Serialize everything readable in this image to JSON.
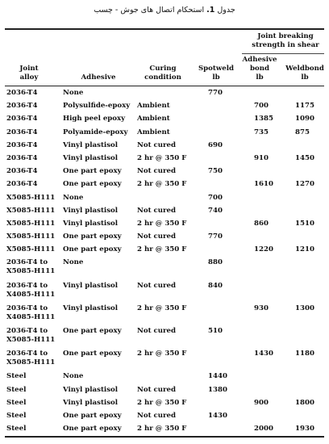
{
  "caption": {
    "text": "استحکام اتصال های جوش - چسب",
    "label": "جدول",
    "number": "1."
  },
  "headers": {
    "group": [
      "Joint breaking",
      "strength in shear"
    ],
    "alloy": [
      "Joint",
      "alloy"
    ],
    "adhesive": [
      "Adhesive"
    ],
    "curing": [
      "Curing",
      "condition"
    ],
    "spotweld": [
      "Spotweld",
      "lb"
    ],
    "adhesive_bond": [
      "Adhesive",
      "bond",
      "lb"
    ],
    "weldbond": [
      "Weldbond",
      "lb"
    ]
  },
  "rows": [
    {
      "alloy": [
        "2036-T4"
      ],
      "adhesive": "None",
      "curing": "",
      "spotweld": "770",
      "adhesive_bond": "",
      "weldbond": ""
    },
    {
      "alloy": [
        "2036-T4"
      ],
      "adhesive": "Polysulfide-epoxy",
      "curing": "Ambient",
      "spotweld": "",
      "adhesive_bond": "700",
      "weldbond": "1175"
    },
    {
      "alloy": [
        "2036-T4"
      ],
      "adhesive": "High peel epoxy",
      "curing": "Ambient",
      "spotweld": "",
      "adhesive_bond": "1385",
      "weldbond": "1090"
    },
    {
      "alloy": [
        "2036-T4"
      ],
      "adhesive": "Polyamide-epoxy",
      "curing": "Ambient",
      "spotweld": "",
      "adhesive_bond": "735",
      "weldbond": "875"
    },
    {
      "alloy": [
        "2036-T4"
      ],
      "adhesive": "Vinyl plastisol",
      "curing": "Not cured",
      "spotweld": "690",
      "adhesive_bond": "",
      "weldbond": ""
    },
    {
      "alloy": [
        "2036-T4"
      ],
      "adhesive": "Vinyl plastisol",
      "curing": "2 hr @ 350 F",
      "spotweld": "",
      "adhesive_bond": "910",
      "weldbond": "1450"
    },
    {
      "alloy": [
        "2036-T4"
      ],
      "adhesive": "One part epoxy",
      "curing": "Not cured",
      "spotweld": "750",
      "adhesive_bond": "",
      "weldbond": ""
    },
    {
      "alloy": [
        "2036-T4"
      ],
      "adhesive": "One part epoxy",
      "curing": "2 hr @ 350 F",
      "spotweld": "",
      "adhesive_bond": "1610",
      "weldbond": "1270"
    },
    {
      "alloy": [
        "X5085-H111"
      ],
      "adhesive": "None",
      "curing": "",
      "spotweld": "700",
      "adhesive_bond": "",
      "weldbond": ""
    },
    {
      "alloy": [
        "X5085-H111"
      ],
      "adhesive": "Vinyl plastisol",
      "curing": "Not cured",
      "spotweld": "740",
      "adhesive_bond": "",
      "weldbond": ""
    },
    {
      "alloy": [
        "X5085-H111"
      ],
      "adhesive": "Vinyl plastisol",
      "curing": "2 hr @ 350 F",
      "spotweld": "",
      "adhesive_bond": "860",
      "weldbond": "1510"
    },
    {
      "alloy": [
        "X5085-H111"
      ],
      "adhesive": "One part epoxy",
      "curing": "Not cured",
      "spotweld": "770",
      "adhesive_bond": "",
      "weldbond": ""
    },
    {
      "alloy": [
        "X5085-H111"
      ],
      "adhesive": "One part epoxy",
      "curing": "2 hr @ 350 F",
      "spotweld": "",
      "adhesive_bond": "1220",
      "weldbond": "1210"
    },
    {
      "alloy": [
        "2036-T4 to",
        "X5085-H111"
      ],
      "adhesive": "None",
      "curing": "",
      "spotweld": "880",
      "adhesive_bond": "",
      "weldbond": ""
    },
    {
      "alloy": [
        "2036-T4 to",
        "X4085-H111"
      ],
      "adhesive": "Vinyl plastisol",
      "curing": "Not cured",
      "spotweld": "840",
      "adhesive_bond": "",
      "weldbond": ""
    },
    {
      "alloy": [
        "2036-T4 to",
        "X4085-H111"
      ],
      "adhesive": "Vinyl plastisol",
      "curing": "2 hr @ 350 F",
      "spotweld": "",
      "adhesive_bond": "930",
      "weldbond": "1300"
    },
    {
      "alloy": [
        "2036-T4 to",
        "X5085-H111"
      ],
      "adhesive": "One part epoxy",
      "curing": "Not cured",
      "spotweld": "510",
      "adhesive_bond": "",
      "weldbond": ""
    },
    {
      "alloy": [
        "2036-T4 to",
        "X5085-H111"
      ],
      "adhesive": "One part epoxy",
      "curing": "2 hr @ 350 F",
      "spotweld": "",
      "adhesive_bond": "1430",
      "weldbond": "1180"
    },
    {
      "alloy": [
        "Steel"
      ],
      "adhesive": "None",
      "curing": "",
      "spotweld": "1440",
      "adhesive_bond": "",
      "weldbond": ""
    },
    {
      "alloy": [
        "Steel"
      ],
      "adhesive": "Vinyl plastisol",
      "curing": "Not cured",
      "spotweld": "1380",
      "adhesive_bond": "",
      "weldbond": ""
    },
    {
      "alloy": [
        "Steel"
      ],
      "adhesive": "Vinyl plastisol",
      "curing": "2 hr @ 350 F",
      "spotweld": "",
      "adhesive_bond": "900",
      "weldbond": "1800"
    },
    {
      "alloy": [
        "Steel"
      ],
      "adhesive": "One part epoxy",
      "curing": "Not cured",
      "spotweld": "1430",
      "adhesive_bond": "",
      "weldbond": ""
    },
    {
      "alloy": [
        "Steel"
      ],
      "adhesive": "One part epoxy",
      "curing": "2 hr @ 350 F",
      "spotweld": "",
      "adhesive_bond": "2000",
      "weldbond": "1930"
    }
  ]
}
